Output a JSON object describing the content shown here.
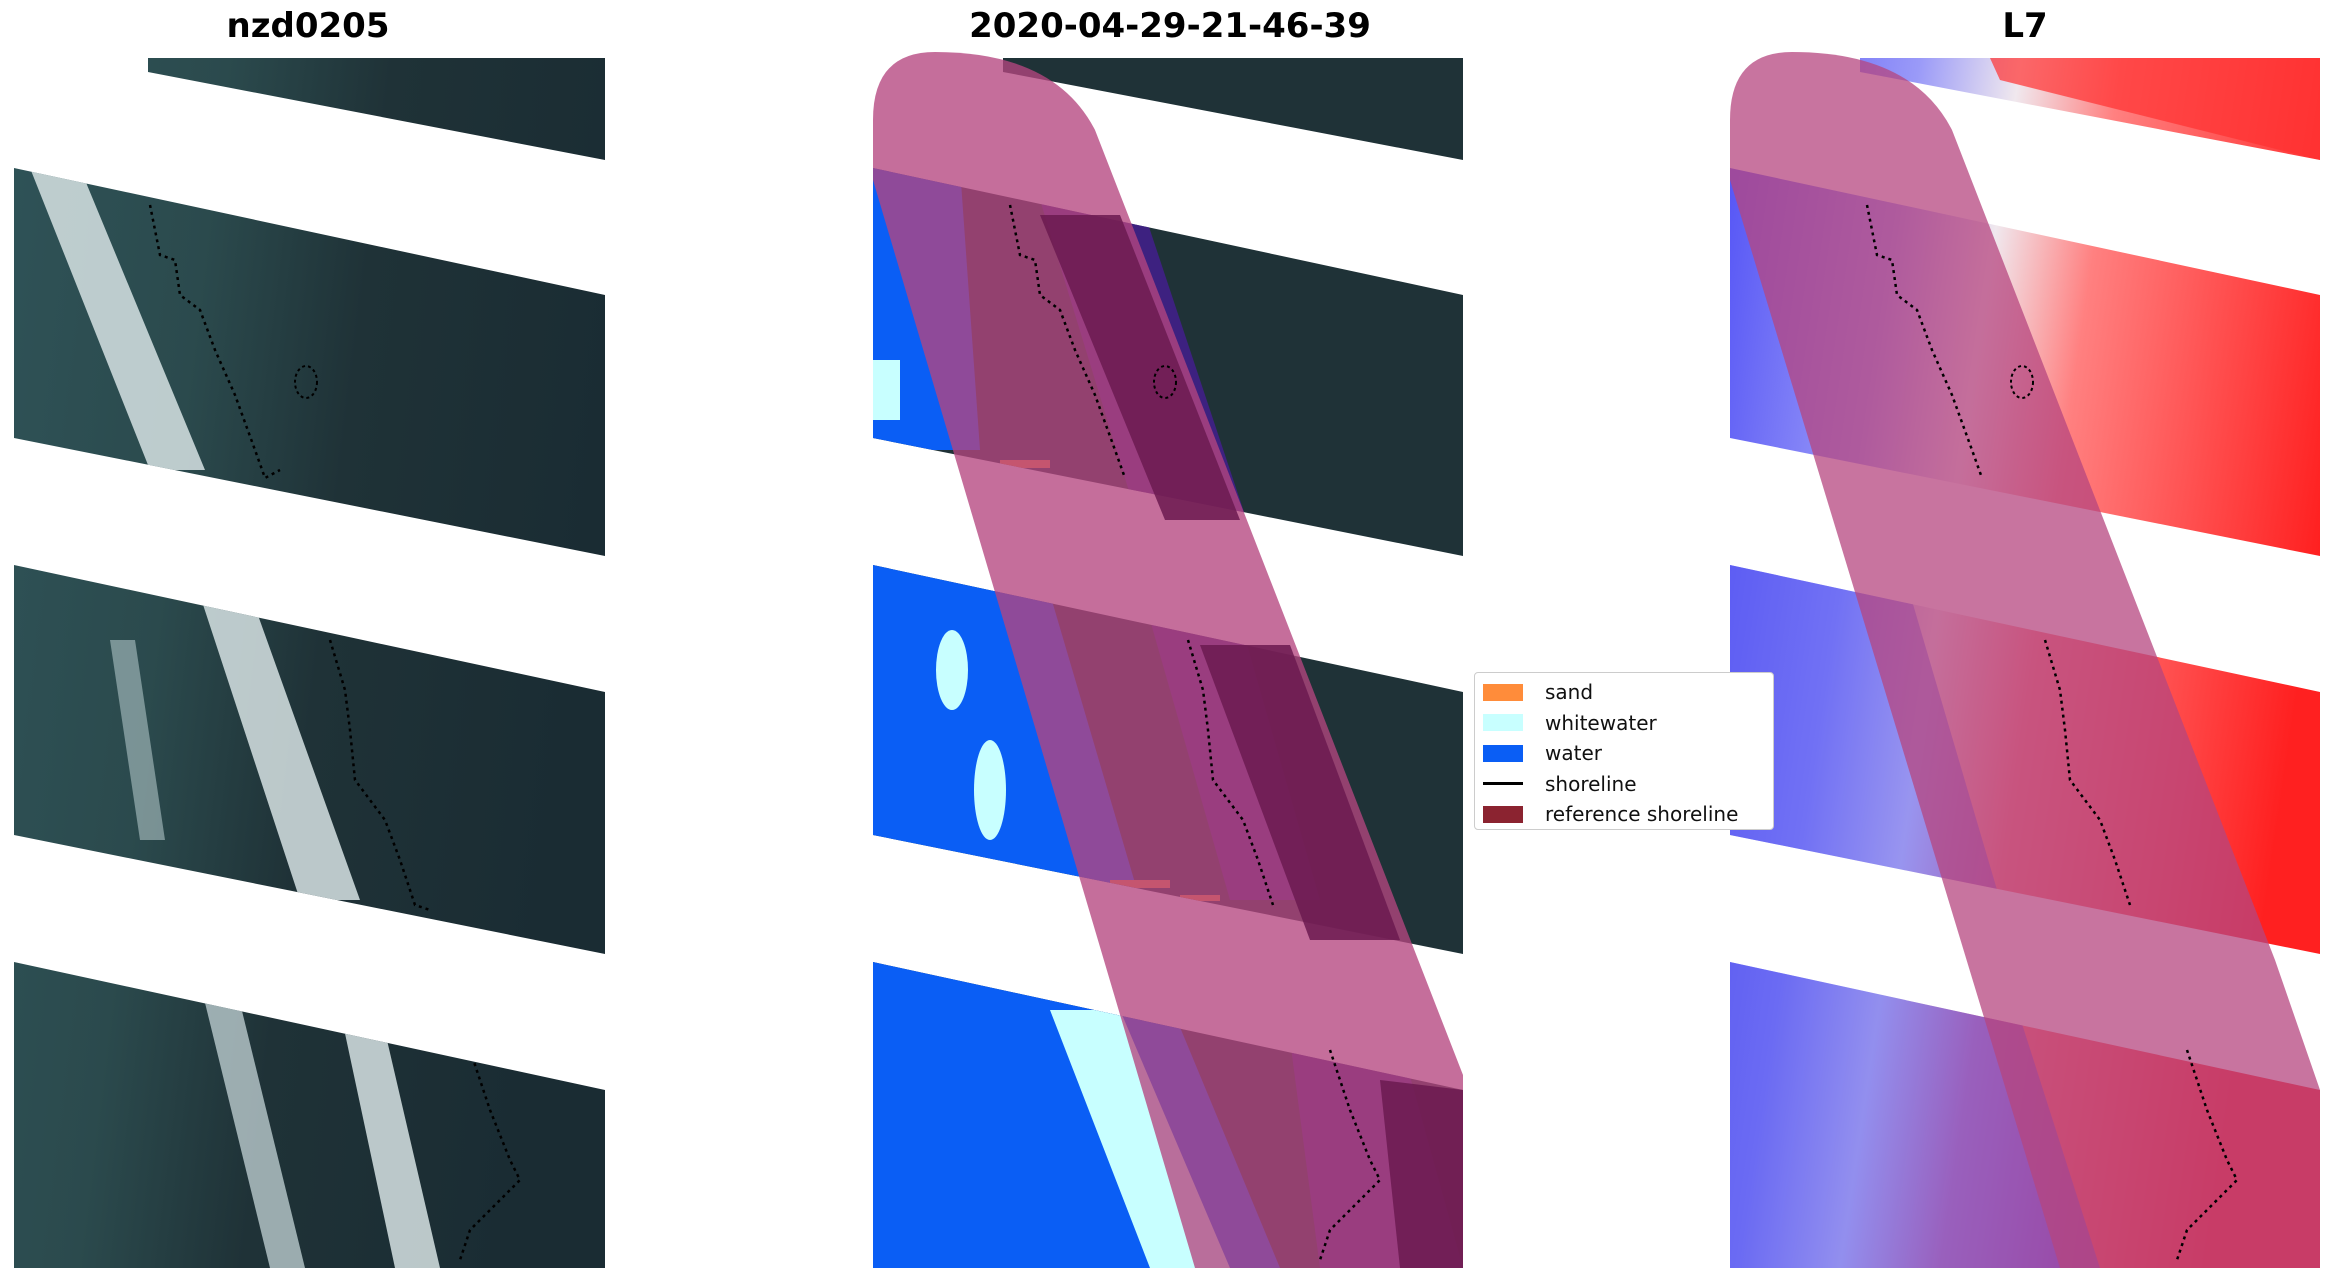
{
  "panels": [
    {
      "title": "nzd0205"
    },
    {
      "title": "2020-04-29-21-46-39"
    },
    {
      "title": "L7"
    }
  ],
  "legend": {
    "items": [
      {
        "label": "sand",
        "type": "patch",
        "color": "#ff8c3a"
      },
      {
        "label": "whitewater",
        "type": "patch",
        "color": "#c8ffff"
      },
      {
        "label": "water",
        "type": "patch",
        "color": "#0a5ef5"
      },
      {
        "label": "shoreline",
        "type": "line",
        "color": "#000000"
      },
      {
        "label": "reference shoreline",
        "type": "patch",
        "color": "#8b2330"
      }
    ]
  },
  "colors": {
    "land_dark": "#1f3237",
    "sea_teal": "#2f5358",
    "surf_white": "#d7e3e4",
    "water_class": "#0a5ef5",
    "whitewater_class": "#c8ffff",
    "reference_band": "#b5457f",
    "index_red": "#ff2a2a",
    "index_blue": "#3a3af0"
  }
}
